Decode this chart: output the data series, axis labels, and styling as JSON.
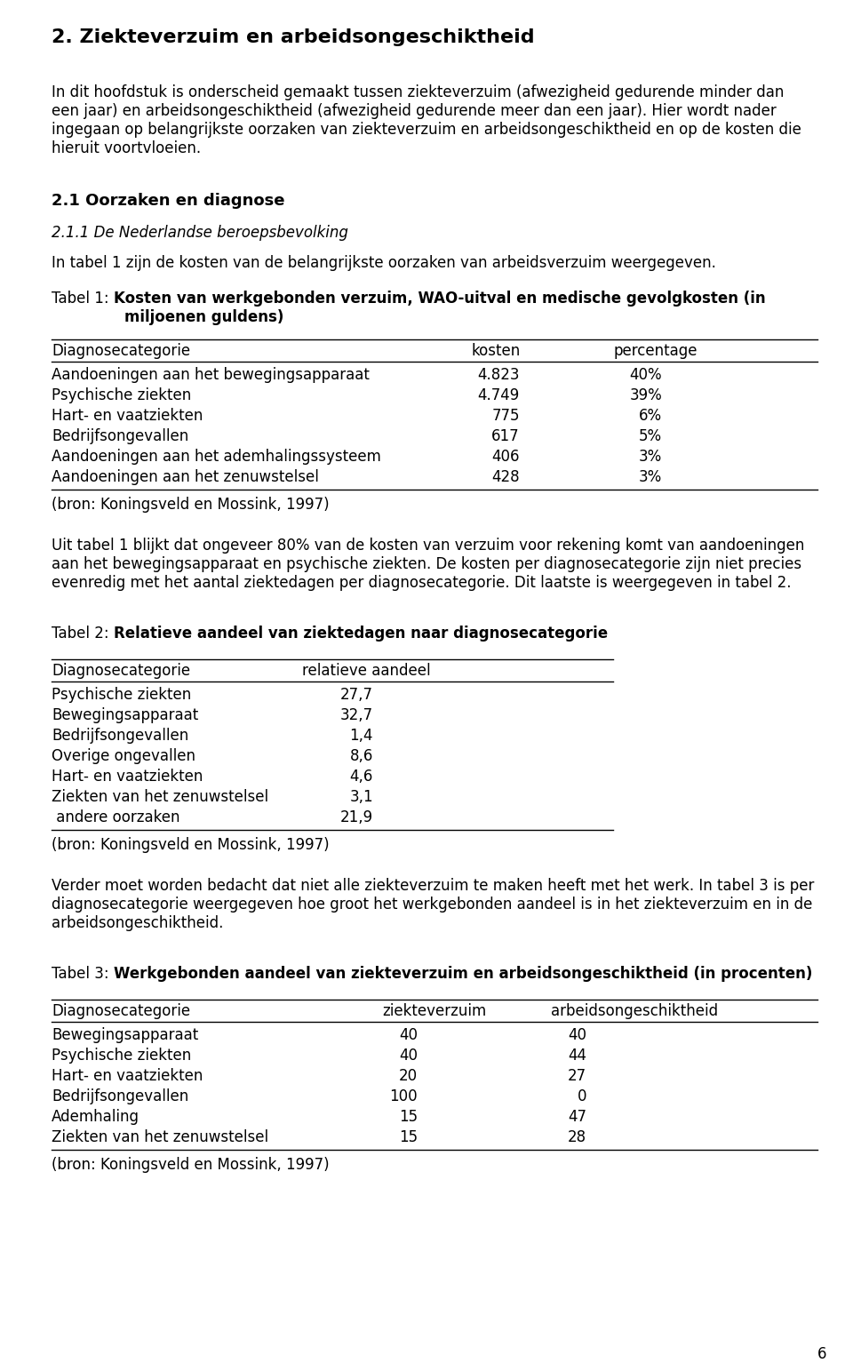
{
  "page_num": "6",
  "main_title": "2. Ziekteverzuim en arbeidsongeschiktheid",
  "intro_lines": [
    "In dit hoofdstuk is onderscheid gemaakt tussen ziekteverzuim (afwezigheid gedurende minder dan",
    "een jaar) en arbeidsongeschiktheid (afwezigheid gedurende meer dan een jaar). Hier wordt nader",
    "ingegaan op belangrijkste oorzaken van ziekteverzuim en arbeidsongeschiktheid en op de kosten die",
    "hieruit voortvloeien."
  ],
  "section_title": "2.1 Oorzaken en diagnose",
  "subsection_title": "2.1.1 De Nederlandse beroepsbevolking",
  "subsection_intro": "In tabel 1 zijn de kosten van de belangrijkste oorzaken van arbeidsverzuim weergegeven.",
  "tabel1_label": "Tabel 1:",
  "tabel1_title_line1": "Kosten van werkgebonden verzuim, WAO-uitval en medische gevolgkosten (in",
  "tabel1_title_line2": "miljoenen guldens)",
  "tabel1_title_indent": 70,
  "tabel1_headers": [
    "Diagnosecategorie",
    "kosten",
    "percentage"
  ],
  "tabel1_rows": [
    [
      "Aandoeningen aan het bewegingsapparaat",
      "4.823",
      "40%"
    ],
    [
      "Psychische ziekten",
      "4.749",
      "39%"
    ],
    [
      "Hart- en vaatziekten",
      "775",
      "6%"
    ],
    [
      "Bedrijfsongevallen",
      "617",
      "5%"
    ],
    [
      "Aandoeningen aan het ademhalingssysteem",
      "406",
      "3%"
    ],
    [
      "Aandoeningen aan het zenuwstelsel",
      "428",
      "3%"
    ]
  ],
  "tabel1_source": "(bron: Koningsveld en Mossink, 1997)",
  "between_lines": [
    "Uit tabel 1 blijkt dat ongeveer 80% van de kosten van verzuim voor rekening komt van aandoeningen",
    "aan het bewegingsapparaat en psychische ziekten. De kosten per diagnosecategorie zijn niet precies",
    "evenredig met het aantal ziektedagen per diagnosecategorie. Dit laatste is weergegeven in tabel 2."
  ],
  "tabel2_label": "Tabel 2:",
  "tabel2_title": "Relatieve aandeel van ziektedagen naar diagnosecategorie",
  "tabel2_headers": [
    "Diagnosecategorie",
    "relatieve aandeel"
  ],
  "tabel2_rows": [
    [
      "Psychische ziekten",
      "27,7"
    ],
    [
      "Bewegingsapparaat",
      "32,7"
    ],
    [
      "Bedrijfsongevallen",
      "1,4"
    ],
    [
      "Overige ongevallen",
      "8,6"
    ],
    [
      "Hart- en vaatziekten",
      "4,6"
    ],
    [
      "Ziekten van het zenuwstelsel",
      "3,1"
    ],
    [
      " andere oorzaken",
      "21,9"
    ]
  ],
  "tabel2_source": "(bron: Koningsveld en Mossink, 1997)",
  "between2_lines": [
    "Verder moet worden bedacht dat niet alle ziekteverzuim te maken heeft met het werk. In tabel 3 is per",
    "diagnosecategorie weergegeven hoe groot het werkgebonden aandeel is in het ziekteverzuim en in de",
    "arbeidsongeschiktheid."
  ],
  "tabel3_label": "Tabel 3:",
  "tabel3_title": "Werkgebonden aandeel van ziekteverzuim en arbeidsongeschiktheid (in procenten)",
  "tabel3_headers": [
    "Diagnosecategorie",
    "ziekteverzuim",
    "arbeidsongeschiktheid"
  ],
  "tabel3_rows": [
    [
      "Bewegingsapparaat",
      "40",
      "40"
    ],
    [
      "Psychische ziekten",
      "40",
      "44"
    ],
    [
      "Hart- en vaatziekten",
      "20",
      "27"
    ],
    [
      "Bedrijfsongevallen",
      "100",
      "0"
    ],
    [
      "Ademhaling",
      "15",
      "47"
    ],
    [
      "Ziekten van het zenuwstelsel",
      "15",
      "28"
    ]
  ],
  "tabel3_source": "(bron: Koningsveld en Mossink, 1997)",
  "bg_color": "#ffffff",
  "fs_main_title": 16,
  "fs_body": 12,
  "fs_section": 13,
  "fs_subsection": 12,
  "fs_table": 12,
  "lh_body": 21,
  "lh_table": 21,
  "ml": 58,
  "mr": 920,
  "tabel2_mr": 690,
  "col1_t1": 58,
  "col2_t1": 530,
  "col3_t1": 690,
  "col1_t2": 58,
  "col2_t2": 340,
  "col1_t3": 58,
  "col2_t3": 430,
  "col3_t3": 620
}
